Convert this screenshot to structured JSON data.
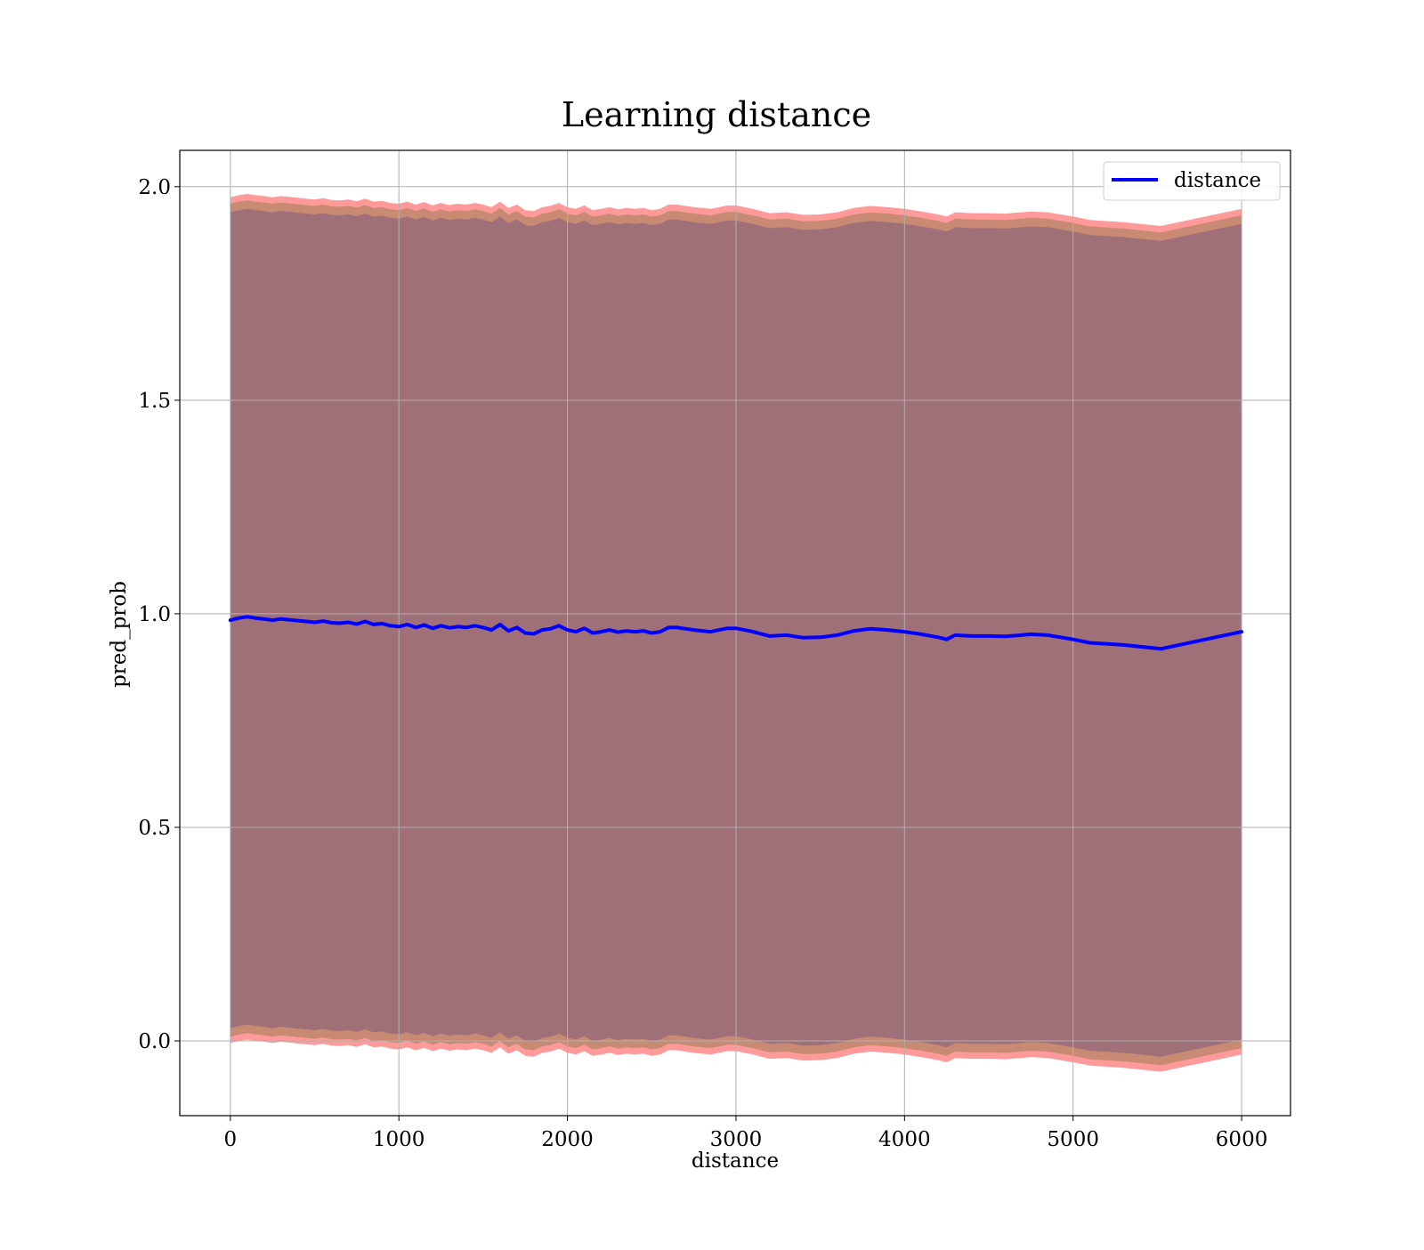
{
  "chart_data": {
    "type": "line",
    "title": "Learning distance",
    "xlabel": "distance",
    "ylabel": "pred_prob",
    "xlim": [
      -300,
      6290
    ],
    "ylim": [
      -0.175,
      2.085
    ],
    "x_ticks": [
      0,
      1000,
      2000,
      3000,
      4000,
      5000,
      6000
    ],
    "x_tick_labels": [
      "0",
      "1000",
      "2000",
      "3000",
      "4000",
      "5000",
      "6000"
    ],
    "y_ticks": [
      0.0,
      0.5,
      1.0,
      1.5,
      2.0
    ],
    "y_tick_labels": [
      "0.0",
      "0.5",
      "1.0",
      "1.5",
      "2.0"
    ],
    "grid": true,
    "legend": {
      "position": "top-right",
      "entries": [
        "distance"
      ]
    },
    "colors": {
      "line": "#0000ff",
      "band_outer": "#ff9a9a",
      "band_middle": "#c98a73",
      "band_inner": "#a07078",
      "grid": "#b0b0b0"
    },
    "series": [
      {
        "name": "distance",
        "x": [
          0,
          50,
          100,
          150,
          200,
          250,
          300,
          350,
          400,
          450,
          500,
          550,
          600,
          650,
          700,
          750,
          800,
          850,
          900,
          950,
          1000,
          1050,
          1100,
          1150,
          1200,
          1250,
          1300,
          1350,
          1400,
          1450,
          1500,
          1550,
          1600,
          1650,
          1700,
          1750,
          1800,
          1850,
          1900,
          1950,
          2000,
          2050,
          2100,
          2150,
          2200,
          2250,
          2300,
          2350,
          2400,
          2450,
          2500,
          2550,
          2600,
          2650,
          2700,
          2750,
          2800,
          2850,
          2900,
          2950,
          3000,
          3050,
          3100,
          3200,
          3300,
          3400,
          3500,
          3600,
          3700,
          3800,
          3900,
          4000,
          4100,
          4200,
          4250,
          4300,
          4400,
          4500,
          4600,
          4750,
          4850,
          5000,
          5100,
          5300,
          5520,
          6000
        ],
        "y": [
          0.985,
          0.99,
          0.993,
          0.99,
          0.988,
          0.985,
          0.988,
          0.986,
          0.984,
          0.982,
          0.98,
          0.983,
          0.979,
          0.978,
          0.98,
          0.976,
          0.982,
          0.975,
          0.977,
          0.972,
          0.97,
          0.975,
          0.968,
          0.974,
          0.966,
          0.972,
          0.967,
          0.97,
          0.968,
          0.972,
          0.968,
          0.962,
          0.975,
          0.96,
          0.968,
          0.955,
          0.953,
          0.962,
          0.965,
          0.972,
          0.962,
          0.958,
          0.966,
          0.955,
          0.958,
          0.962,
          0.957,
          0.96,
          0.958,
          0.96,
          0.955,
          0.958,
          0.968,
          0.968,
          0.965,
          0.962,
          0.96,
          0.958,
          0.962,
          0.966,
          0.966,
          0.962,
          0.958,
          0.948,
          0.95,
          0.944,
          0.945,
          0.95,
          0.96,
          0.965,
          0.962,
          0.958,
          0.952,
          0.945,
          0.94,
          0.95,
          0.948,
          0.948,
          0.947,
          0.952,
          0.95,
          0.94,
          0.932,
          0.927,
          0.918,
          0.958
        ]
      }
    ],
    "bands": [
      {
        "label": "outer",
        "half_width": 0.99
      },
      {
        "label": "middle",
        "half_width": 0.975
      },
      {
        "label": "inner",
        "half_width": 0.955
      }
    ]
  }
}
